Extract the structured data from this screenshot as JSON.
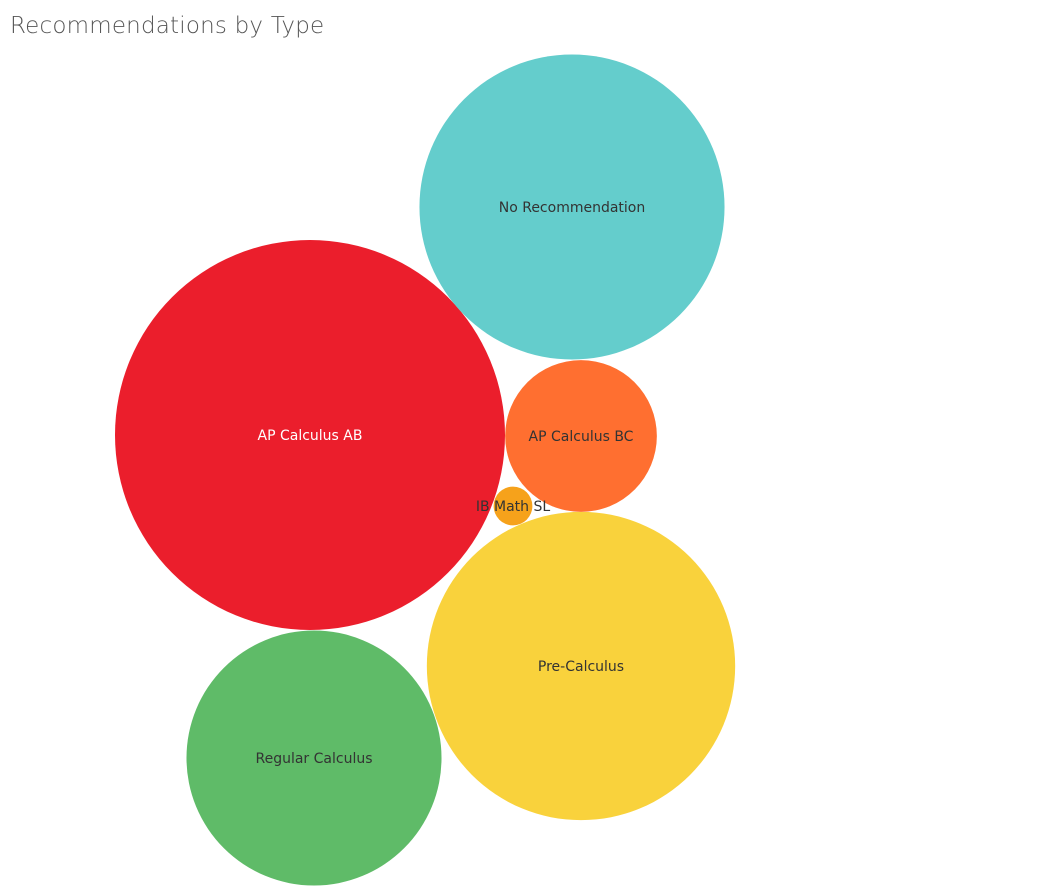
{
  "chart_data": {
    "type": "bubble",
    "title": "Recommendations by Type",
    "size_measure_note": "",
    "items": [
      {
        "label": "AP Calculus AB",
        "value": 152,
        "color": "#EB1E2C",
        "label_color": "#ffffff"
      },
      {
        "label": "Pre-Calculus",
        "value": 95,
        "color": "#F9D23C",
        "label_color": "#333333"
      },
      {
        "label": "No Recommendation",
        "value": 93,
        "color": "#64CDCC",
        "label_color": "#333333"
      },
      {
        "label": "Regular Calculus",
        "value": 65,
        "color": "#5FBB68",
        "label_color": "#333333"
      },
      {
        "label": "AP Calculus BC",
        "value": 23,
        "color": "#FF6F30",
        "label_color": "#333333"
      },
      {
        "label": "IB Math SL",
        "value": 1.5,
        "color": "#F6A21B",
        "label_color": "#333333"
      }
    ]
  }
}
